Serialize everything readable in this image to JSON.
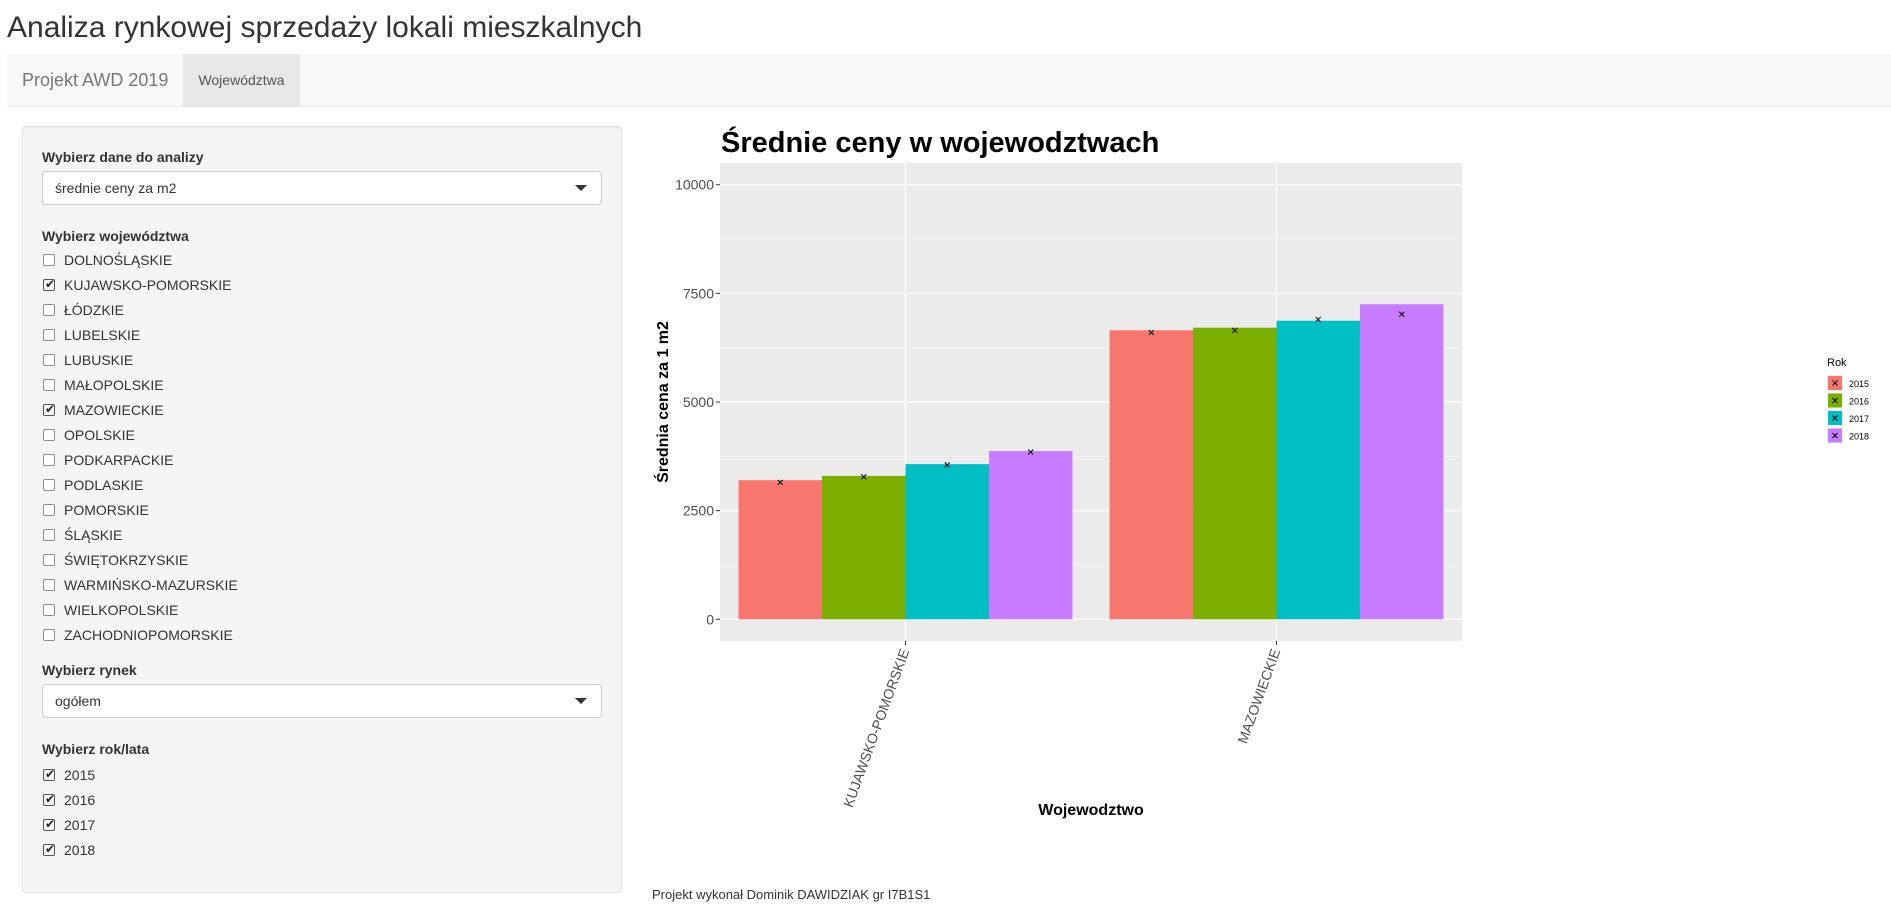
{
  "app": {
    "title": "Analiza rynkowej sprzedaży lokali mieszkalnych"
  },
  "navbar": {
    "brand": "Projekt AWD 2019",
    "tabs": [
      {
        "label": "Województwa",
        "active": true
      }
    ]
  },
  "sidebar": {
    "data_select": {
      "label": "Wybierz dane do analizy",
      "value": "średnie ceny za m2"
    },
    "voivodeships": {
      "label": "Wybierz województwa",
      "items": [
        {
          "label": "DOLNOŚLĄSKIE",
          "checked": false
        },
        {
          "label": "KUJAWSKO-POMORSKIE",
          "checked": true
        },
        {
          "label": "ŁÓDZKIE",
          "checked": false
        },
        {
          "label": "LUBELSKIE",
          "checked": false
        },
        {
          "label": "LUBUSKIE",
          "checked": false
        },
        {
          "label": "MAŁOPOLSKIE",
          "checked": false
        },
        {
          "label": "MAZOWIECKIE",
          "checked": true
        },
        {
          "label": "OPOLSKIE",
          "checked": false
        },
        {
          "label": "PODKARPACKIE",
          "checked": false
        },
        {
          "label": "PODLASKIE",
          "checked": false
        },
        {
          "label": "POMORSKIE",
          "checked": false
        },
        {
          "label": "ŚLĄSKIE",
          "checked": false
        },
        {
          "label": "ŚWIĘTOKRZYSKIE",
          "checked": false
        },
        {
          "label": "WARMIŃSKO-MAZURSKIE",
          "checked": false
        },
        {
          "label": "WIELKOPOLSKIE",
          "checked": false
        },
        {
          "label": "ZACHODNIOPOMORSKIE",
          "checked": false
        }
      ]
    },
    "market_select": {
      "label": "Wybierz rynek",
      "value": "ogółem"
    },
    "years": {
      "label": "Wybierz rok/lata",
      "items": [
        {
          "label": "2015",
          "checked": true
        },
        {
          "label": "2016",
          "checked": true
        },
        {
          "label": "2017",
          "checked": true
        },
        {
          "label": "2018",
          "checked": true
        }
      ]
    }
  },
  "footer": {
    "text": "Projekt wykonał Dominik DAWIDZIAK gr I7B1S1"
  },
  "chart_data": {
    "type": "bar",
    "title": "Średnie ceny w wojewodztwach",
    "xlabel": "Wojewodztwo",
    "ylabel": "Średnia cena za 1 m2",
    "categories": [
      "KUJAWSKO-POMORSKIE",
      "MAZOWIECKIE"
    ],
    "series": [
      {
        "name": "2015",
        "color": "#F8766D",
        "values": [
          3200,
          6650
        ]
      },
      {
        "name": "2016",
        "color": "#7CAE00",
        "values": [
          3300,
          6710
        ]
      },
      {
        "name": "2017",
        "color": "#00BFC4",
        "values": [
          3570,
          6870
        ]
      },
      {
        "name": "2018",
        "color": "#C77CFF",
        "values": [
          3870,
          7250
        ]
      }
    ],
    "markers": [
      [
        3150,
        6600
      ],
      [
        3280,
        6650
      ],
      [
        3550,
        6900
      ],
      [
        3850,
        7020
      ]
    ],
    "ylim": [
      -500,
      10500
    ],
    "yticks": [
      0,
      2500,
      5000,
      7500,
      10000
    ],
    "legend": {
      "title": "Rok",
      "position": "right"
    },
    "grid": true,
    "background": "#EBEBEB"
  }
}
